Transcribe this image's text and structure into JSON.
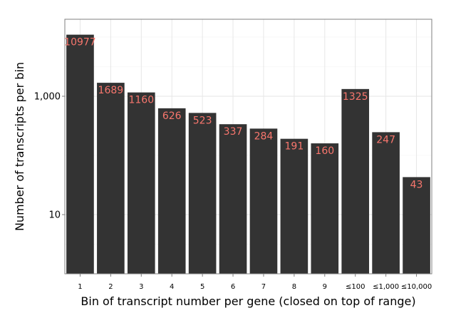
{
  "chart_data": {
    "type": "bar",
    "title": "",
    "xlabel": "Bin of transcript number per gene (closed on top of range)",
    "ylabel": "Number of transcripts per bin",
    "y_scale": "log10",
    "ylim": [
      1,
      20000
    ],
    "grid": true,
    "legend": "none",
    "categories": [
      "1",
      "2",
      "3",
      "4",
      "5",
      "6",
      "7",
      "8",
      "9",
      "≤100",
      "≤1,000",
      "≤10,000"
    ],
    "values": [
      10977,
      1689,
      1160,
      626,
      523,
      337,
      284,
      191,
      160,
      1325,
      247,
      43
    ],
    "data_labels": [
      "10977",
      "1689",
      "1160",
      "626",
      "523",
      "337",
      "284",
      "191",
      "160",
      "1325",
      "247",
      "43"
    ],
    "y_ticks": [
      10,
      1000
    ],
    "y_tick_labels": [
      "10",
      "1,000"
    ],
    "colors": {
      "bar": "#333333",
      "label": "#F8766D",
      "panel_border": "#7F7F7F",
      "grid_major": "#E6E6E6",
      "grid_minor": "#F4F4F4"
    }
  }
}
